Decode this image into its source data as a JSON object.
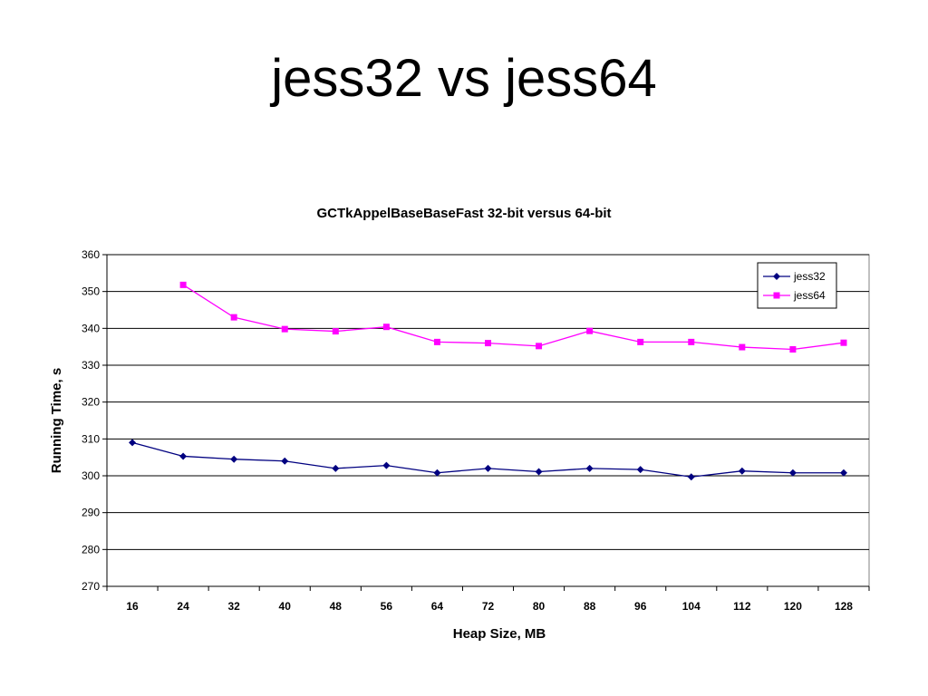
{
  "slide": {
    "title": "jess32 vs jess64"
  },
  "chart_data": {
    "type": "line",
    "title": "GCTkAppelBaseBaseFast 32-bit versus 64-bit",
    "xlabel": "Heap Size, MB",
    "ylabel": "Running Time, s",
    "categories": [
      "16",
      "24",
      "32",
      "40",
      "48",
      "56",
      "64",
      "72",
      "80",
      "88",
      "96",
      "104",
      "112",
      "120",
      "128"
    ],
    "ylim": [
      270,
      360
    ],
    "yticks": [
      "270",
      "280",
      "290",
      "300",
      "310",
      "320",
      "330",
      "340",
      "350",
      "360"
    ],
    "grid": true,
    "legend_position": "top-right",
    "series": [
      {
        "name": "jess32",
        "color": "#000080",
        "marker": "diamond",
        "values": [
          309,
          305.3,
          304.5,
          304,
          302,
          302.8,
          300.8,
          302,
          301.1,
          302,
          301.7,
          299.7,
          301.3,
          300.8,
          300.8
        ]
      },
      {
        "name": "jess64",
        "color": "#ff00ff",
        "marker": "square",
        "values": [
          null,
          351.8,
          343,
          339.8,
          339.2,
          340.4,
          336.3,
          336,
          335.2,
          339.3,
          336.3,
          336.3,
          334.9,
          334.3,
          336.1
        ]
      }
    ]
  }
}
